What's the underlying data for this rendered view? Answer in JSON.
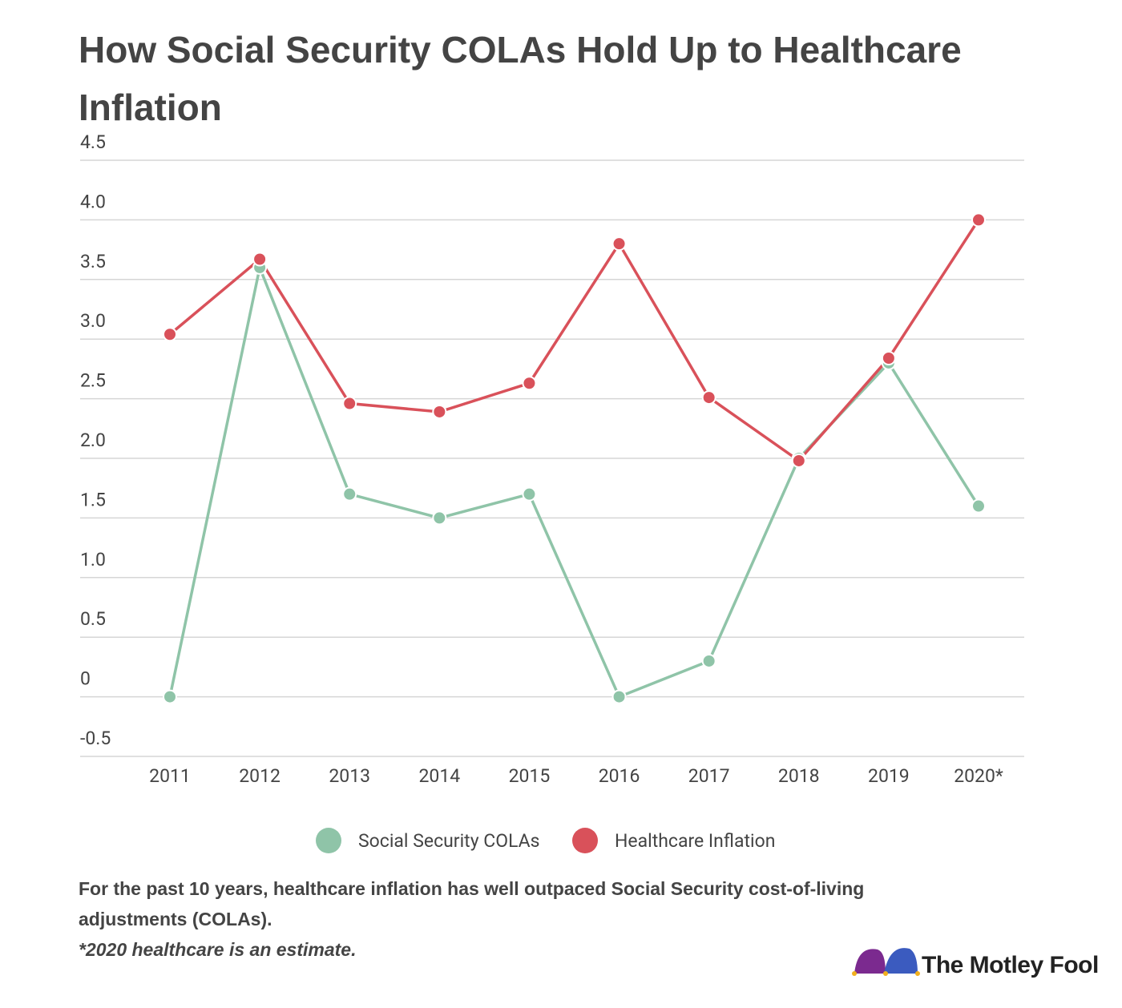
{
  "chart_data": {
    "type": "line",
    "title": "How Social Security COLAs Hold Up to Healthcare Inflation",
    "categories": [
      "2011",
      "2012",
      "2013",
      "2014",
      "2015",
      "2016",
      "2017",
      "2018",
      "2019",
      "2020*"
    ],
    "series": [
      {
        "name": "Social Security COLAs",
        "color": "#8fc4a8",
        "values": [
          0,
          3.6,
          1.7,
          1.5,
          1.7,
          0,
          0.3,
          2.0,
          2.8,
          1.6
        ]
      },
      {
        "name": "Healthcare Inflation",
        "color": "#d9515a",
        "values": [
          3.04,
          3.67,
          2.46,
          2.39,
          2.63,
          3.8,
          2.51,
          1.98,
          2.84,
          4.0
        ]
      }
    ],
    "ylim": [
      -0.5,
      4.5
    ],
    "yticks": [
      4.5,
      {
        "value": 4,
        "label": "4.0"
      },
      3.5,
      {
        "value": 3,
        "label": "3.0"
      },
      2.5,
      {
        "value": 2,
        "label": "2.0"
      },
      1.5,
      {
        "value": 1,
        "label": "1.0"
      },
      0.5,
      0,
      -0.5
    ],
    "grid": true,
    "notes": [
      "For the past 10 years, healthcare inflation has well outpaced Social Security cost-of-living adjustments (COLAs).",
      "*2020 healthcare is an estimate."
    ],
    "source": "The Motley Fool"
  }
}
